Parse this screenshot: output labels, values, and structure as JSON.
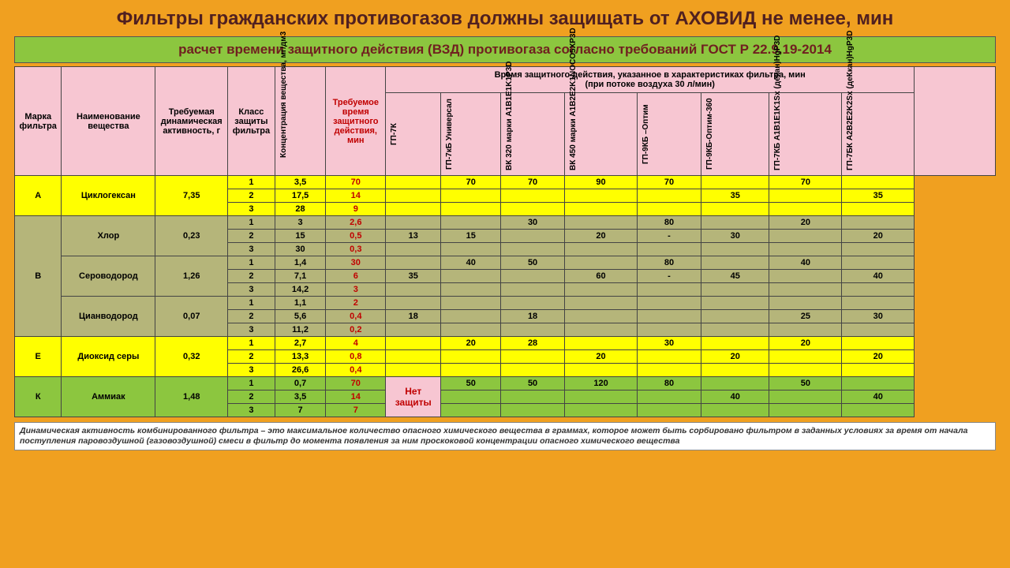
{
  "title": "Фильтры гражданских противогазов  должны  защищать от АХОВИД не менее, мин",
  "subtitle": "расчет времени защитного действия (ВЗД) противогаза согласно требований ГОСТ Р 22.9.19-2014",
  "columns": {
    "c1": "Марка фильтра",
    "c2": "Наименование вещества",
    "c3": "Требуемая динамическая активность, г",
    "c4": "Класс защиты фильтра",
    "c5": "Концентрация вещества, мг/дм3",
    "c6": "Требуемое время защитного действия, мин",
    "grp": "Время защитного действия, указанное в характеристиках  фильтра, мин\n(при потоке воздуха 30 л/мин)",
    "f1": "ГП-7К",
    "f2": "ГП-7кБ Универсал",
    "f3": "ВК 320 марки A1B1E1K1P3D",
    "f4": "ВК 450 марки A1B2E2K1NOCO5XP3D",
    "f5": "ГП-9КБ –Оптим",
    "f6": "ГП-9КБ-Оптим-360",
    "f7": "ГП-7КБ A1B1E1K1Sx (декан)HgP3D",
    "f8": "ГП-7БК A2B2E2K2Sx (деКкан)HgP3D"
  },
  "groups": [
    {
      "mark": "А",
      "color": "yellow",
      "subs": [
        {
          "name": "Циклогексан",
          "act": "7,35",
          "rows": [
            {
              "cls": "1",
              "conc": "3,5",
              "req": "70",
              "v": [
                "",
                "70",
                "70",
                "90",
                "70",
                "",
                "70",
                ""
              ]
            },
            {
              "cls": "2",
              "conc": "17,5",
              "req": "14",
              "v": [
                "",
                "",
                "",
                "",
                "",
                "35",
                "",
                "35"
              ]
            },
            {
              "cls": "3",
              "conc": "28",
              "req": "9",
              "v": [
                "",
                "",
                "",
                "",
                "",
                "",
                "",
                ""
              ]
            }
          ]
        }
      ]
    },
    {
      "mark": "В",
      "color": "olive",
      "subs": [
        {
          "name": "Хлор",
          "act": "0,23",
          "rows": [
            {
              "cls": "1",
              "conc": "3",
              "req": "2,6",
              "v": [
                "",
                "",
                "30",
                "",
                "80",
                "",
                "20",
                ""
              ]
            },
            {
              "cls": "2",
              "conc": "15",
              "req": "0,5",
              "v": [
                "13",
                "15",
                "",
                "20",
                "-",
                "30",
                "",
                "20"
              ]
            },
            {
              "cls": "3",
              "conc": "30",
              "req": "0,3",
              "v": [
                "",
                "",
                "",
                "",
                "",
                "",
                "",
                ""
              ]
            }
          ]
        },
        {
          "name": "Сероводород",
          "act": "1,26",
          "rows": [
            {
              "cls": "1",
              "conc": "1,4",
              "req": "30",
              "v": [
                "",
                "40",
                "50",
                "",
                "80",
                "",
                "40",
                ""
              ]
            },
            {
              "cls": "2",
              "conc": "7,1",
              "req": "6",
              "v": [
                "35",
                "",
                "",
                "60",
                "-",
                "45",
                "",
                "40"
              ]
            },
            {
              "cls": "3",
              "conc": "14,2",
              "req": "3",
              "v": [
                "",
                "",
                "",
                "",
                "",
                "",
                "",
                ""
              ]
            }
          ]
        },
        {
          "name": "Цианводород",
          "act": "0,07",
          "rows": [
            {
              "cls": "1",
              "conc": "1,1",
              "req": "2",
              "v": [
                "",
                "",
                "",
                "",
                "",
                "",
                "",
                ""
              ]
            },
            {
              "cls": "2",
              "conc": "5,6",
              "req": "0,4",
              "v": [
                "18",
                "",
                "18",
                "",
                "",
                "",
                "25",
                "30"
              ]
            },
            {
              "cls": "3",
              "conc": "11,2",
              "req": "0,2",
              "v": [
                "",
                "",
                "",
                "",
                "",
                "",
                "",
                ""
              ]
            }
          ]
        }
      ]
    },
    {
      "mark": "Е",
      "color": "yellow",
      "subs": [
        {
          "name": "Диоксид серы",
          "act": "0,32",
          "rows": [
            {
              "cls": "1",
              "conc": "2,7",
              "req": "4",
              "v": [
                "",
                "20",
                "28",
                "",
                "30",
                "",
                "20",
                ""
              ]
            },
            {
              "cls": "2",
              "conc": "13,3",
              "req": "0,8",
              "v": [
                "",
                "",
                "",
                "20",
                "",
                "20",
                "",
                "20"
              ]
            },
            {
              "cls": "3",
              "conc": "26,6",
              "req": "0,4",
              "v": [
                "",
                "",
                "",
                "",
                "",
                "",
                "",
                ""
              ]
            }
          ]
        }
      ]
    },
    {
      "mark": "К",
      "color": "green",
      "subs": [
        {
          "name": "Аммиак",
          "act": "1,48",
          "noProtect": "Нет защиты",
          "rows": [
            {
              "cls": "1",
              "conc": "0,7",
              "req": "70",
              "v": [
                "50",
                "50",
                "120",
                "80",
                "",
                "50",
                ""
              ]
            },
            {
              "cls": "2",
              "conc": "3,5",
              "req": "14",
              "v": [
                "",
                "",
                "",
                "",
                "40",
                "",
                "40"
              ]
            },
            {
              "cls": "3",
              "conc": "7",
              "req": "7",
              "v": [
                "",
                "",
                "",
                "",
                "",
                "",
                ""
              ]
            }
          ]
        }
      ]
    }
  ],
  "footnote": "Динамическая активность комбинированного фильтра – это максимальное количество опасного химического вещества в граммах, которое может быть сорбировано фильтром в заданных условиях за время от начала поступления паровоздушной (газовоздушной) смеси в фильтр до момента появления за ним проскоковой концентрации опасного химического вещества",
  "style": {
    "colors": {
      "page_bg": "#f0a020",
      "header_pink": "#f7c6d2",
      "yellow": "#ffff00",
      "olive": "#b5b57a",
      "green": "#8cc63f",
      "req_red": "#c00000"
    },
    "fonts": {
      "title": 24,
      "subtitle": 17,
      "cell": 11,
      "vertical": 10,
      "foot": 10.5
    }
  }
}
